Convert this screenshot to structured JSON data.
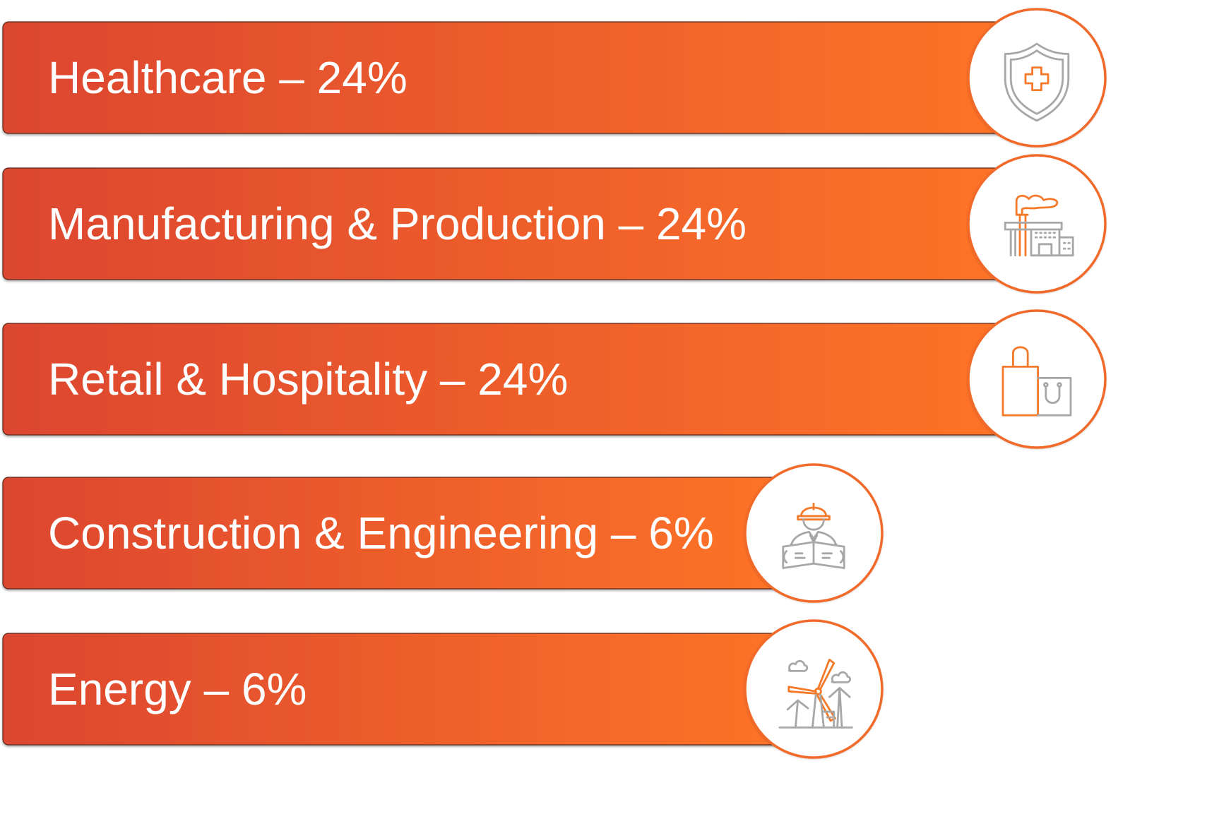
{
  "colors": {
    "bar_start": "#dc4630",
    "bar_end": "#ff7527",
    "circle_border": "#f26a2b",
    "icon_gray": "#a7a7a7",
    "icon_orange": "#f47a2a"
  },
  "chart_data": {
    "type": "bar",
    "orientation": "horizontal",
    "title": "",
    "xlabel": "",
    "ylabel": "",
    "xlim": [
      0,
      24
    ],
    "grid": false,
    "legend": "none",
    "categories": [
      "Healthcare",
      "Manufacturing & Production",
      "Retail & Hospitality",
      "Construction & Engineering",
      "Energy"
    ],
    "values": [
      24,
      24,
      24,
      6,
      6
    ],
    "labels": [
      "Healthcare – 24%",
      "Manufacturing & Production – 24%",
      "Retail & Hospitality – 24%",
      "Construction & Engineering – 6%",
      "Energy – 6%"
    ],
    "icons": [
      "shield-medical-icon",
      "factory-icon",
      "shopping-bag-icon",
      "engineer-blueprint-icon",
      "wind-turbine-icon"
    ]
  }
}
